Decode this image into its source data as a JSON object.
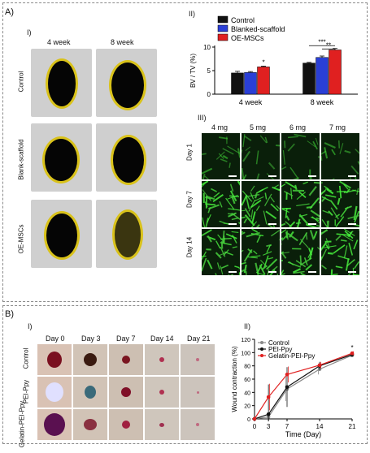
{
  "panelA": {
    "label": "A)",
    "sub1": "I)",
    "sub2": "II)",
    "sub3": "III)",
    "scan_columns": [
      "4 week",
      "8 week"
    ],
    "scan_rows": [
      "Control",
      "Blank-scaffold",
      "OE-MSCs"
    ],
    "fluor_columns": [
      "4 mg",
      "5 mg",
      "6 mg",
      "7 mg"
    ],
    "fluor_rows": [
      "Day 1",
      "Day 7",
      "Day 14"
    ]
  },
  "panelB": {
    "label": "B)",
    "sub1": "I)",
    "sub2": "II)",
    "photo_columns": [
      "Day 0",
      "Day 3",
      "Day 7",
      "Day 14",
      "Day 21"
    ],
    "photo_rows": [
      "Control",
      "PEI-Ppy",
      "Gelatin-PEI-Ppy"
    ]
  },
  "chart_data": [
    {
      "type": "bar",
      "ylabel": "BV / TV (%)",
      "categories": [
        "4 week",
        "8 week"
      ],
      "ylim": [
        0,
        10
      ],
      "yticks": [
        0,
        5,
        10
      ],
      "series": [
        {
          "name": "Control",
          "color": "#111111",
          "values": [
            4.5,
            6.6
          ],
          "errors": [
            0.35,
            0.15
          ]
        },
        {
          "name": "Blanked-scaffold",
          "color": "#2a3fd6",
          "values": [
            4.6,
            7.8
          ],
          "errors": [
            0.2,
            0.3
          ]
        },
        {
          "name": "OE-MSCs",
          "color": "#e02020",
          "values": [
            5.8,
            9.4
          ],
          "errors": [
            0.15,
            0.3
          ]
        }
      ],
      "annotations": [
        "*",
        "***",
        "**"
      ],
      "legend_position": "top"
    },
    {
      "type": "line",
      "xlabel": "Time (Day)",
      "ylabel": "Wound contraction (%)",
      "x": [
        0,
        3,
        7,
        14,
        21
      ],
      "xlim": [
        0,
        21
      ],
      "ylim": [
        0,
        120
      ],
      "yticks": [
        0,
        20,
        40,
        60,
        80,
        100,
        120
      ],
      "series": [
        {
          "name": "Control",
          "color": "#8a8a8a",
          "values": [
            0,
            3,
            45,
            75,
            96
          ],
          "errors": [
            0,
            5,
            18,
            8,
            3
          ]
        },
        {
          "name": "PEI-Ppy",
          "color": "#111111",
          "values": [
            0,
            7,
            48,
            80,
            97
          ],
          "errors": [
            0,
            45,
            30,
            6,
            3
          ]
        },
        {
          "name": "Gelatin-PEI-Ppy",
          "color": "#e02020",
          "values": [
            0,
            33,
            67,
            81,
            99
          ],
          "errors": [
            0,
            20,
            12,
            5,
            3
          ]
        }
      ],
      "annotations": [
        "*"
      ],
      "legend_position": "top-left"
    }
  ]
}
